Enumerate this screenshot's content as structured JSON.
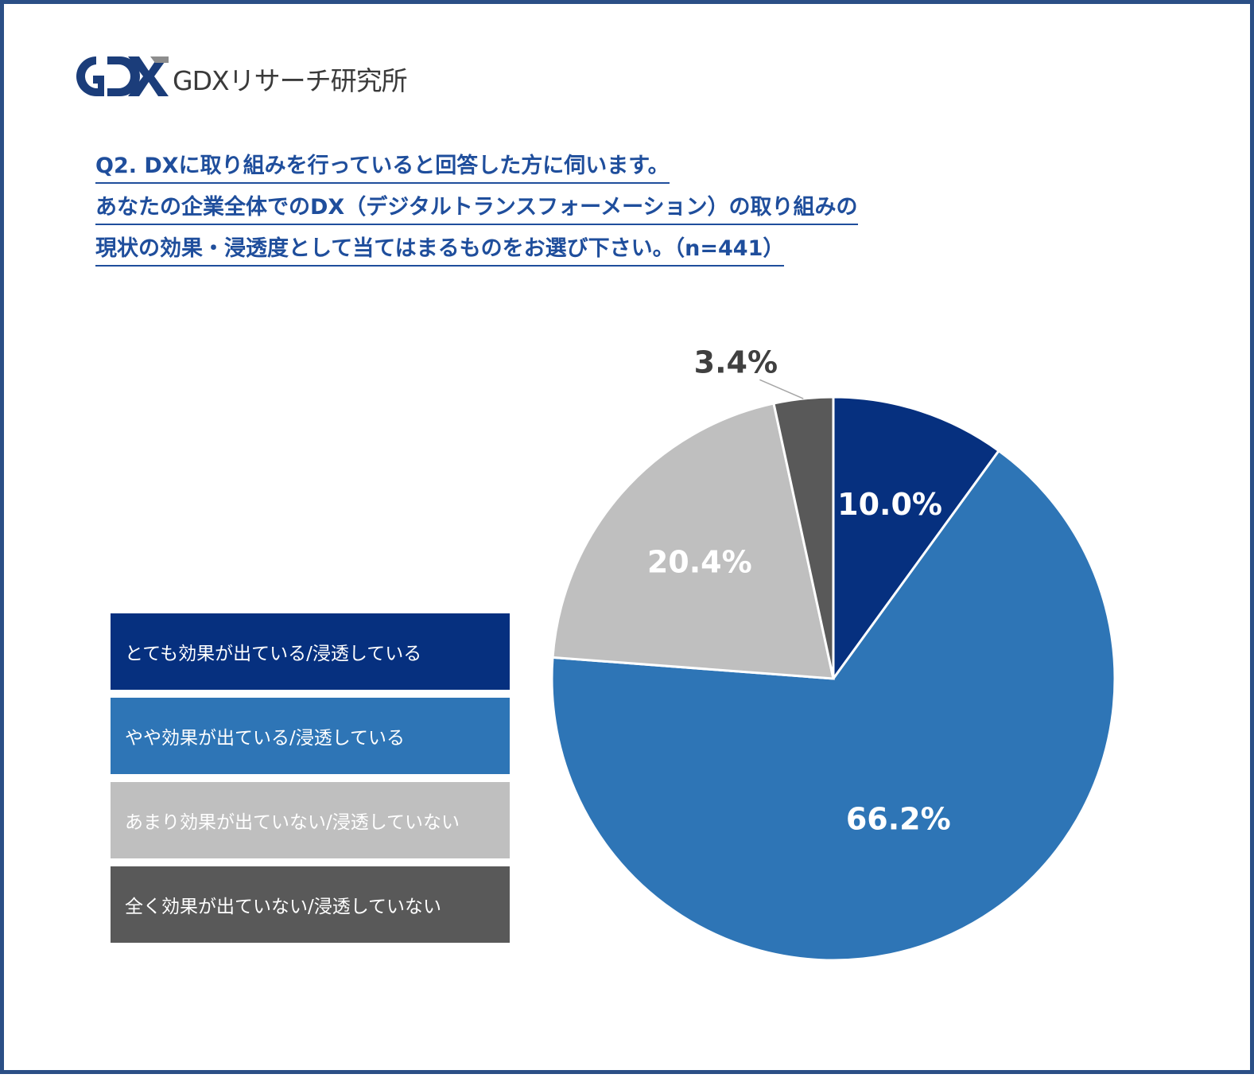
{
  "logo": {
    "mark_text": "GDX",
    "name": "GDXリサーチ研究所"
  },
  "question": {
    "lines": [
      "Q2. DXに取り組みを行っていると回答した方に伺います。",
      "あなたの企業全体でのDX（デジタルトランスフォーメーション）の取り組みの",
      "現状の効果・浸透度として当てはまるものをお選び下さい。（n=441）"
    ],
    "color": "#1f4e9c"
  },
  "chart_data": {
    "type": "pie",
    "start_angle_deg": 0,
    "direction": "clockwise",
    "slices": [
      {
        "label": "とても効果が出ている/浸透している",
        "value": 10.0,
        "display": "10.0%",
        "color": "#06307f",
        "text_color": "#ffffff"
      },
      {
        "label": "やや効果が出ている/浸透している",
        "value": 66.2,
        "display": "66.2%",
        "color": "#2e75b6",
        "text_color": "#ffffff"
      },
      {
        "label": "あまり効果が出ていない/浸透していない",
        "value": 20.4,
        "display": "20.4%",
        "color": "#bfbfbf",
        "text_color": "#ffffff"
      },
      {
        "label": "全く効果が出ていない/浸透していない",
        "value": 3.4,
        "display": "3.4%",
        "color": "#595959",
        "text_color": "#404040"
      }
    ],
    "legend_position": "left"
  }
}
